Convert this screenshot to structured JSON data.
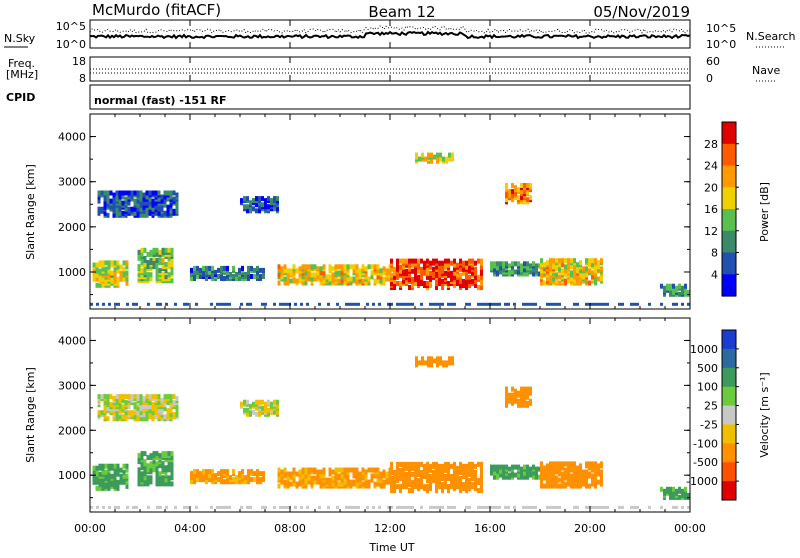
{
  "header": {
    "station": "McMurdo (fitACF)",
    "beam": "Beam 12",
    "date": "05/Nov/2019"
  },
  "noise_panel": {
    "left_label": "N.Sky",
    "right_label": "N.Search",
    "left_ticks": [
      "10^5",
      "10^0"
    ],
    "right_ticks": [
      "10^5",
      "10^0"
    ]
  },
  "freq_panel": {
    "left_label_1": "Freq.",
    "left_label_2": "[MHz]",
    "right_label": "Nave",
    "left_ticks": [
      "18",
      "8"
    ],
    "right_ticks": [
      "60",
      "0"
    ]
  },
  "cpid": {
    "label": "CPID",
    "text": "normal (fast) -151 RF"
  },
  "power_panel": {
    "ylabel": "Slant Range [km]",
    "yticks": [
      "1000",
      "2000",
      "3000",
      "4000"
    ],
    "colorbar_label": "Power [dB]",
    "colorbar_ticks": [
      "4",
      "8",
      "12",
      "16",
      "20",
      "24",
      "28"
    ],
    "colors": [
      "#0000ff",
      "#2050b0",
      "#3a8a6a",
      "#59c050",
      "#f0d000",
      "#ff9a00",
      "#ff5a00",
      "#e00000"
    ]
  },
  "velocity_panel": {
    "ylabel": "Slant Range [km]",
    "yticks": [
      "1000",
      "2000",
      "3000",
      "4000"
    ],
    "colorbar_label": "Velocity [m s⁻¹]",
    "colorbar_ticks": [
      "1000",
      "500",
      "100",
      "25",
      "-25",
      "-100",
      "-500",
      "-1000"
    ],
    "colors": [
      "#1a3cd0",
      "#2a6aa0",
      "#3c9a5a",
      "#6acc3a",
      "#c8c8c8",
      "#f0c000",
      "#ff9000",
      "#ff5000",
      "#e00000"
    ]
  },
  "x_axis": {
    "title": "Time UT",
    "ticks": [
      "00:00",
      "04:00",
      "08:00",
      "12:00",
      "16:00",
      "20:00",
      "00:00"
    ]
  },
  "chart_data": [
    {
      "type": "heatmap",
      "title": "Power",
      "xlabel": "Time UT",
      "ylabel": "Slant Range [km]",
      "xlim_hours": [
        0,
        24
      ],
      "ylim": [
        180,
        4500
      ],
      "colorbar_range": [
        0,
        30
      ],
      "colorbar_label": "Power [dB]",
      "regions": [
        {
          "t0": 0.1,
          "t1": 1.5,
          "r0": 650,
          "r1": 1150,
          "value": 16
        },
        {
          "t0": 1.9,
          "t1": 3.3,
          "r0": 750,
          "r1": 1450,
          "value": 14
        },
        {
          "t0": 4.0,
          "t1": 7.0,
          "r0": 800,
          "r1": 1050,
          "value": 8
        },
        {
          "t0": 7.5,
          "t1": 12.0,
          "r0": 700,
          "r1": 1100,
          "value": 18
        },
        {
          "t0": 12.0,
          "t1": 15.6,
          "r0": 600,
          "r1": 1200,
          "value": 26
        },
        {
          "t0": 16.0,
          "t1": 18.0,
          "r0": 900,
          "r1": 1150,
          "value": 10
        },
        {
          "t0": 18.0,
          "t1": 20.5,
          "r0": 700,
          "r1": 1200,
          "value": 18
        },
        {
          "t0": 22.8,
          "t1": 24.0,
          "r0": 450,
          "r1": 650,
          "value": 10
        },
        {
          "t0": 0.3,
          "t1": 3.5,
          "r0": 2200,
          "r1": 2700,
          "value": 6
        },
        {
          "t0": 6.0,
          "t1": 7.5,
          "r0": 2300,
          "r1": 2600,
          "value": 6
        },
        {
          "t0": 16.6,
          "t1": 17.6,
          "r0": 2500,
          "r1": 2900,
          "value": 22
        },
        {
          "t0": 13.0,
          "t1": 14.5,
          "r0": 3400,
          "r1": 3550,
          "value": 16
        }
      ]
    },
    {
      "type": "heatmap",
      "title": "Velocity",
      "xlabel": "Time UT",
      "ylabel": "Slant Range [km]",
      "xlim_hours": [
        0,
        24
      ],
      "ylim": [
        180,
        4500
      ],
      "colorbar_range": [
        -1000,
        1000
      ],
      "colorbar_label": "Velocity [m s⁻¹]",
      "regions": [
        {
          "t0": 0.1,
          "t1": 1.5,
          "r0": 650,
          "r1": 1150,
          "value": 150
        },
        {
          "t0": 1.9,
          "t1": 3.3,
          "r0": 750,
          "r1": 1450,
          "value": 150
        },
        {
          "t0": 4.0,
          "t1": 7.0,
          "r0": 800,
          "r1": 1050,
          "value": -150
        },
        {
          "t0": 7.5,
          "t1": 12.0,
          "r0": 700,
          "r1": 1100,
          "value": -150
        },
        {
          "t0": 12.0,
          "t1": 15.6,
          "r0": 600,
          "r1": 1200,
          "value": -200
        },
        {
          "t0": 16.0,
          "t1": 18.0,
          "r0": 900,
          "r1": 1150,
          "value": 150
        },
        {
          "t0": 18.0,
          "t1": 20.5,
          "r0": 700,
          "r1": 1200,
          "value": -300
        },
        {
          "t0": 22.8,
          "t1": 24.0,
          "r0": 450,
          "r1": 650,
          "value": 150
        },
        {
          "t0": 0.3,
          "t1": 3.5,
          "r0": 2200,
          "r1": 2700,
          "value": 0
        },
        {
          "t0": 6.0,
          "t1": 7.5,
          "r0": 2300,
          "r1": 2600,
          "value": 0
        },
        {
          "t0": 16.6,
          "t1": 17.6,
          "r0": 2500,
          "r1": 2900,
          "value": -200
        },
        {
          "t0": 13.0,
          "t1": 14.5,
          "r0": 3400,
          "r1": 3550,
          "value": -200
        }
      ]
    }
  ]
}
